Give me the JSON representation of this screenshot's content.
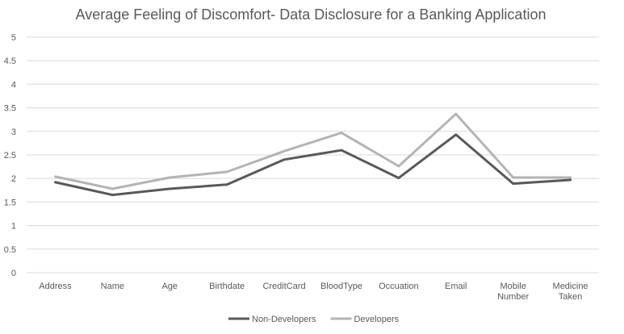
{
  "chart_data": {
    "type": "line",
    "title": "Average Feeling of Discomfort- Data Disclosure for a Banking Application",
    "xlabel": "",
    "ylabel": "",
    "categories": [
      [
        "Address"
      ],
      [
        "Name"
      ],
      [
        "Age"
      ],
      [
        "Birthdate"
      ],
      [
        "CreditCard"
      ],
      [
        "BloodType"
      ],
      [
        "Occuation"
      ],
      [
        "Email"
      ],
      [
        "Mobile",
        "Number"
      ],
      [
        "Medicine",
        "Taken"
      ]
    ],
    "series": [
      {
        "name": "Non-Developers",
        "color": "#595959",
        "values": [
          1.92,
          1.65,
          1.78,
          1.87,
          2.4,
          2.6,
          2.01,
          2.93,
          1.89,
          1.97
        ]
      },
      {
        "name": "Developers",
        "color": "#b4b4b4",
        "values": [
          2.04,
          1.78,
          2.02,
          2.14,
          2.58,
          2.97,
          2.26,
          3.37,
          2.02,
          2.02
        ]
      }
    ],
    "ylim": [
      0,
      5
    ],
    "yticks": [
      "0",
      "0.5",
      "1",
      "1.5",
      "2",
      "2.5",
      "3",
      "3.5",
      "4",
      "4.5",
      "5"
    ],
    "grid": true,
    "legend_position": "bottom"
  }
}
